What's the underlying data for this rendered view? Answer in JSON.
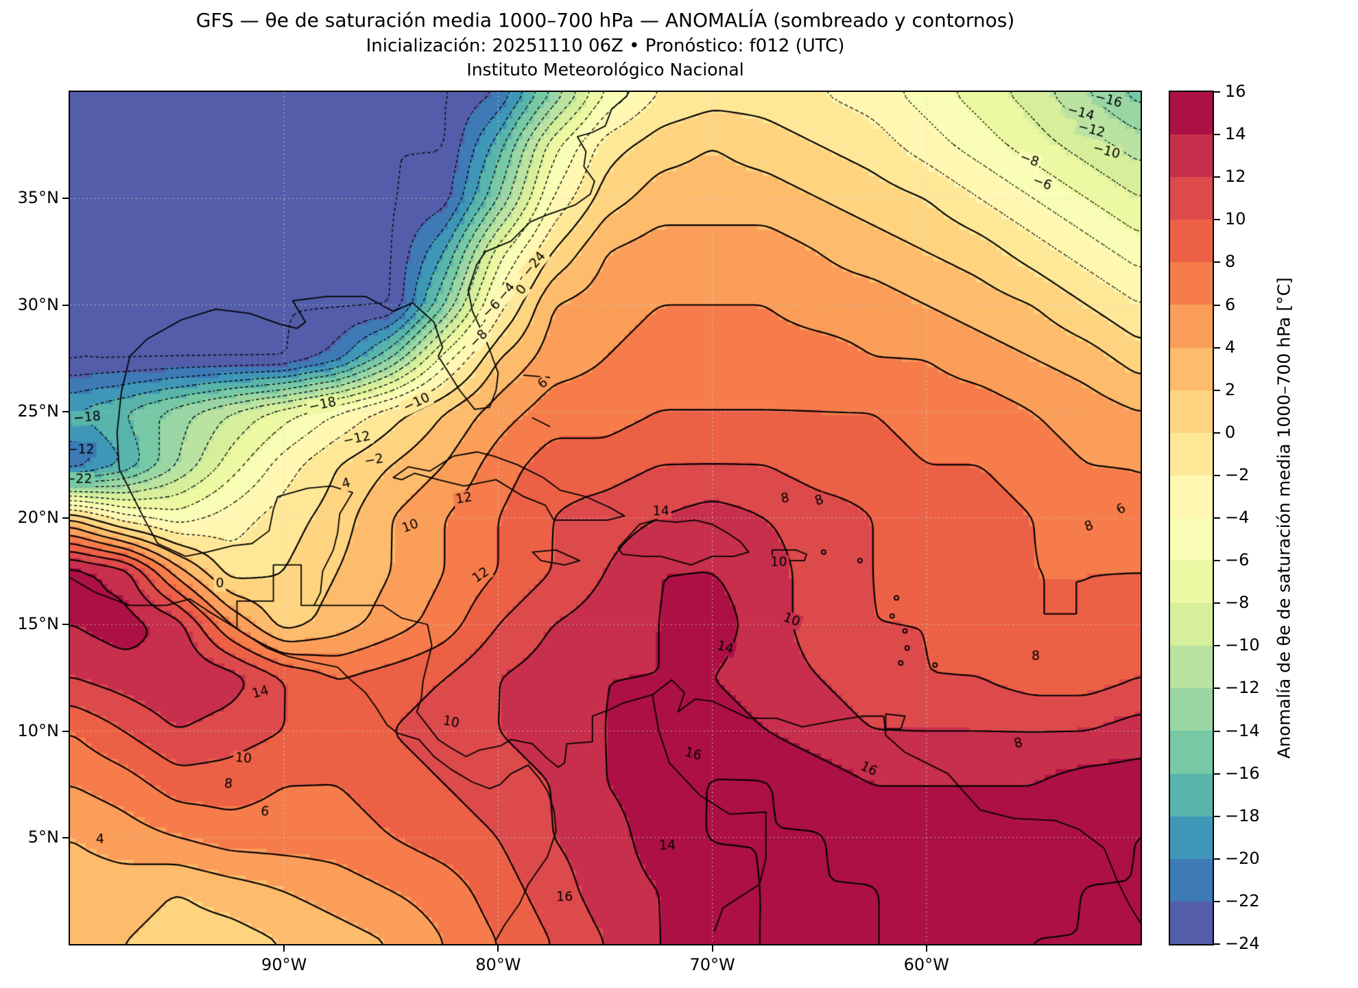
{
  "title": {
    "line1": "GFS — θe de saturación media 1000–700 hPa — ANOMALÍA (sombreado y contornos)",
    "line2": "Inicialización: 20251110 06Z  •  Pronóstico: f012 (UTC)",
    "line3": "Instituto Meteorológico Nacional"
  },
  "axes": {
    "x_ticks": [
      {
        "label": "90°W",
        "lon": -90
      },
      {
        "label": "80°W",
        "lon": -80
      },
      {
        "label": "70°W",
        "lon": -70
      },
      {
        "label": "60°W",
        "lon": -60
      }
    ],
    "y_ticks": [
      {
        "label": "35°N",
        "lat": 35
      },
      {
        "label": "30°N",
        "lat": 30
      },
      {
        "label": "25°N",
        "lat": 25
      },
      {
        "label": "20°N",
        "lat": 20
      },
      {
        "label": "15°N",
        "lat": 15
      },
      {
        "label": "10°N",
        "lat": 10
      },
      {
        "label": "5°N",
        "lat": 5
      }
    ]
  },
  "colorbar": {
    "label": "Anomalía de θe de saturación media 1000–700 hPa [°C]",
    "vmin": -24,
    "vmax": 16,
    "step": 2,
    "tick_values": [
      16,
      14,
      12,
      10,
      8,
      6,
      4,
      2,
      0,
      -2,
      -4,
      -6,
      -8,
      -10,
      -12,
      -14,
      -16,
      -18,
      -20,
      -22,
      -24
    ],
    "tick_labels": [
      "16",
      "14",
      "12",
      "10",
      "8",
      "6",
      "4",
      "2",
      "0",
      "−2",
      "−4",
      "−6",
      "−8",
      "−10",
      "−12",
      "−14",
      "−16",
      "−18",
      "−20",
      "−22",
      "−24"
    ],
    "colors": [
      "#535da9",
      "#3d7ab6",
      "#3f97b7",
      "#59b4ab",
      "#77c9a5",
      "#9ad6a4",
      "#bae3a1",
      "#d7ef9b",
      "#ecf8a2",
      "#f9fdb5",
      "#fff7b2",
      "#fee898",
      "#fed481",
      "#fdbb6c",
      "#fb9e5a",
      "#f67d4b",
      "#ec6146",
      "#dd4a4c",
      "#c72f4c",
      "#ac1045"
    ]
  },
  "chart_data": {
    "type": "heatmap",
    "title": "GFS — θe de saturación media 1000–700 hPa — ANOMALÍA (sombreado y contornos)",
    "subtitle": "Inicialización: 20251110 06Z • Pronóstico: f012 (UTC)",
    "source": "Instituto Meteorológico Nacional",
    "units": "°C",
    "lon_min": -100,
    "lon_max": -50,
    "lat_min": 0,
    "lat_max": 40,
    "grid_step_deg": 2.5,
    "contour_interval": 2,
    "contour_min": -24,
    "contour_max": 16,
    "negative_contours": "dotted",
    "positive_contours": "solid",
    "lons": [
      -100,
      -97.5,
      -95,
      -92.5,
      -90,
      -87.5,
      -85,
      -82.5,
      -80,
      -77.5,
      -75,
      -72.5,
      -70,
      -67.5,
      -65,
      -62.5,
      -60,
      -57.5,
      -55,
      -52.5,
      -50
    ],
    "lats": [
      40,
      37.5,
      35,
      32.5,
      30,
      27.5,
      25,
      22.5,
      20,
      17.5,
      15,
      12.5,
      10,
      7.5,
      5,
      2.5,
      0
    ],
    "values": [
      [
        -24,
        -24,
        -24,
        -24,
        -24,
        -24,
        -24,
        -24,
        -22,
        -14,
        -6,
        -2,
        -1,
        -1,
        -2,
        -3,
        -5,
        -7,
        -9,
        -12,
        -15
      ],
      [
        -24,
        -24,
        -24,
        -24,
        -24,
        -24,
        -24,
        -24,
        -17,
        -7,
        -1,
        1,
        2,
        1,
        0,
        -1,
        -3,
        -5,
        -7,
        -9,
        -11
      ],
      [
        -24,
        -24,
        -24,
        -24,
        -24,
        -24,
        -24,
        -23,
        -14,
        -4,
        1,
        3,
        3,
        3,
        2,
        1,
        0,
        -2,
        -4,
        -6,
        -8
      ],
      [
        -24,
        -24,
        -24,
        -24,
        -24,
        -24,
        -24,
        -18,
        -7,
        0,
        4,
        5,
        5,
        5,
        4,
        3,
        2,
        1,
        -1,
        -3,
        -5
      ],
      [
        -24,
        -24,
        -24,
        -24,
        -24,
        -24,
        -24,
        -14,
        -3,
        4,
        5,
        6,
        6,
        6,
        5,
        5,
        4,
        3,
        2,
        0,
        -2
      ],
      [
        -24,
        -24,
        -24,
        -24,
        -24,
        -21,
        -14,
        -5,
        2,
        5,
        6,
        7,
        7,
        7,
        7,
        6,
        6,
        5,
        4,
        3,
        1
      ],
      [
        -18,
        -16,
        -13,
        -10,
        -7,
        -4,
        -1,
        2,
        5,
        7,
        7,
        8,
        8,
        8,
        8,
        8,
        7,
        7,
        6,
        5,
        4
      ],
      [
        -22,
        -18,
        -12,
        -7,
        -3,
        0,
        2,
        4,
        7,
        9,
        9,
        10,
        10,
        10,
        9,
        9,
        8,
        8,
        7,
        6,
        6
      ],
      [
        2,
        -3,
        -5,
        -3,
        -1,
        1,
        4,
        6,
        8,
        10,
        11,
        12,
        13,
        12,
        11,
        10,
        9,
        9,
        8,
        7,
        6
      ],
      [
        15,
        13,
        5,
        -1,
        0,
        2,
        4,
        6,
        8,
        10,
        12,
        14,
        14,
        13,
        11,
        10,
        9,
        9,
        8,
        8,
        8
      ],
      [
        14,
        15,
        13,
        6,
        1,
        3,
        5,
        7,
        10,
        12,
        13,
        14,
        15,
        13,
        11,
        10,
        10,
        9,
        8,
        8,
        9
      ],
      [
        12,
        13,
        14,
        13,
        10,
        8,
        9,
        10,
        12,
        13,
        14,
        14,
        14,
        13,
        12,
        11,
        10,
        10,
        9,
        9,
        10
      ],
      [
        8,
        10,
        12,
        11,
        10,
        9,
        10,
        11,
        12,
        13,
        14,
        15,
        15,
        14,
        13,
        12,
        12,
        12,
        12,
        12,
        13
      ],
      [
        6,
        7,
        9,
        9,
        8,
        8,
        9,
        10,
        11,
        12,
        14,
        15,
        16,
        16,
        15,
        14,
        14,
        14,
        14,
        15,
        15
      ],
      [
        4,
        5,
        6,
        7,
        7,
        7,
        8,
        9,
        10,
        12,
        13,
        15,
        16,
        16,
        16,
        15,
        15,
        15,
        15,
        15,
        16
      ],
      [
        3,
        3,
        2,
        3,
        4,
        5,
        6,
        7,
        9,
        11,
        13,
        14,
        15,
        16,
        16,
        16,
        15,
        15,
        15,
        16,
        16
      ],
      [
        2,
        2,
        1,
        1,
        2,
        3,
        4,
        6,
        8,
        10,
        12,
        14,
        15,
        16,
        16,
        16,
        15,
        15,
        16,
        16,
        16
      ]
    ],
    "contour_labels": [
      {
        "t": "−24",
        "lon": -78.3,
        "lat": 31.9,
        "rot": -50
      },
      {
        "t": "−18",
        "lon": -88.2,
        "lat": 25.3,
        "rot": -12
      },
      {
        "t": "−18",
        "lon": -99.2,
        "lat": 24.7,
        "rot": -5
      },
      {
        "t": "−12",
        "lon": -86.6,
        "lat": 23.7,
        "rot": -12
      },
      {
        "t": "−12",
        "lon": -99.5,
        "lat": 23.2,
        "rot": 0
      },
      {
        "t": "−10",
        "lon": -83.8,
        "lat": 25.4,
        "rot": -25
      },
      {
        "t": "−8",
        "lon": -80.9,
        "lat": 28.4,
        "rot": -45
      },
      {
        "t": "−6",
        "lon": -80.3,
        "lat": 29.8,
        "rot": -45
      },
      {
        "t": "−4",
        "lon": -79.6,
        "lat": 30.6,
        "rot": -50
      },
      {
        "t": "−2",
        "lon": -85.8,
        "lat": 22.7,
        "rot": -10
      },
      {
        "t": "−22",
        "lon": -99.6,
        "lat": 21.8,
        "rot": 0
      },
      {
        "t": "−16",
        "lon": -51.5,
        "lat": 39.6,
        "rot": 15
      },
      {
        "t": "−14",
        "lon": -52.8,
        "lat": 39.0,
        "rot": 15
      },
      {
        "t": "−12",
        "lon": -52.3,
        "lat": 38.2,
        "rot": 15
      },
      {
        "t": "−10",
        "lon": -51.6,
        "lat": 37.2,
        "rot": 15
      },
      {
        "t": "−8",
        "lon": -55.2,
        "lat": 36.8,
        "rot": 20
      },
      {
        "t": "−6",
        "lon": -54.6,
        "lat": 35.7,
        "rot": 20
      },
      {
        "t": "0",
        "lon": -78.9,
        "lat": 30.7,
        "rot": -50
      },
      {
        "t": "0",
        "lon": -93.0,
        "lat": 16.9,
        "rot": 0
      },
      {
        "t": "4",
        "lon": -87.1,
        "lat": 21.6,
        "rot": -15
      },
      {
        "t": "4",
        "lon": -98.6,
        "lat": 4.9,
        "rot": 0
      },
      {
        "t": "6",
        "lon": -77.9,
        "lat": 26.3,
        "rot": -40
      },
      {
        "t": "6",
        "lon": -90.9,
        "lat": 6.2,
        "rot": 5
      },
      {
        "t": "6",
        "lon": -50.9,
        "lat": 20.4,
        "rot": -30
      },
      {
        "t": "8",
        "lon": -92.6,
        "lat": 7.5,
        "rot": 5
      },
      {
        "t": "8",
        "lon": -66.6,
        "lat": 20.9,
        "rot": -10
      },
      {
        "t": "8",
        "lon": -65.0,
        "lat": 20.8,
        "rot": -20
      },
      {
        "t": "8",
        "lon": -52.4,
        "lat": 19.6,
        "rot": -20
      },
      {
        "t": "8",
        "lon": -54.9,
        "lat": 13.5,
        "rot": 0
      },
      {
        "t": "8",
        "lon": -55.7,
        "lat": 9.4,
        "rot": -15
      },
      {
        "t": "10",
        "lon": -84.1,
        "lat": 19.6,
        "rot": -20
      },
      {
        "t": "10",
        "lon": -66.9,
        "lat": 17.9,
        "rot": 0
      },
      {
        "t": "10",
        "lon": -66.3,
        "lat": 15.2,
        "rot": 20
      },
      {
        "t": "10",
        "lon": -82.2,
        "lat": 10.4,
        "rot": 10
      },
      {
        "t": "10",
        "lon": -91.9,
        "lat": 8.7,
        "rot": 5
      },
      {
        "t": "12",
        "lon": -81.6,
        "lat": 20.9,
        "rot": -10
      },
      {
        "t": "12",
        "lon": -80.8,
        "lat": 17.3,
        "rot": -35
      },
      {
        "t": "14",
        "lon": -72.4,
        "lat": 20.3,
        "rot": 0
      },
      {
        "t": "14",
        "lon": -69.4,
        "lat": 13.9,
        "rot": 15
      },
      {
        "t": "14",
        "lon": -91.1,
        "lat": 11.8,
        "rot": -15
      },
      {
        "t": "14",
        "lon": -72.1,
        "lat": 4.6,
        "rot": 0
      },
      {
        "t": "16",
        "lon": -70.9,
        "lat": 8.9,
        "rot": 15
      },
      {
        "t": "16",
        "lon": -62.7,
        "lat": 8.2,
        "rot": 25
      },
      {
        "t": "16",
        "lon": -76.9,
        "lat": 2.2,
        "rot": 0
      }
    ]
  }
}
